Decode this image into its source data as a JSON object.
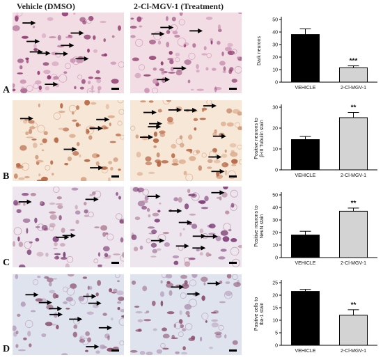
{
  "columns": {
    "vehicle": "Vehicle (DMSO)",
    "treatment": "2-Cl-MGV-1 (Treatment)"
  },
  "rows": [
    "A",
    "B",
    "C",
    "D"
  ],
  "palette": {
    "A": {
      "bg": "#f2dde4",
      "cell": "#8e3a6e",
      "cellLight": "#c98fb0"
    },
    "B": {
      "bg": "#f6e7d6",
      "cell": "#b5633f",
      "cellLight": "#d9a486"
    },
    "C": {
      "bg": "#eee6ee",
      "cell": "#7e3f77",
      "cellLight": "#b78a9e"
    },
    "D": {
      "bg": "#dfe3ee",
      "cell": "#8a4a6a",
      "cellLight": "#b39ab8"
    }
  },
  "chart_data": [
    {
      "type": "bar",
      "categories": [
        "VEHICLE",
        "2-Cl-MGV-1"
      ],
      "values": [
        38,
        11.5
      ],
      "errors": [
        4.5,
        1.5
      ],
      "ylabel": "Dark neurons",
      "ylim": [
        0,
        50
      ],
      "yticks": [
        0,
        10,
        20,
        30,
        40,
        50
      ],
      "significance": "***",
      "colors": [
        "#000000",
        "#d3d3d3"
      ]
    },
    {
      "type": "bar",
      "categories": [
        "VEHICLE",
        "2-Cl-MGV-1"
      ],
      "values": [
        14.5,
        25
      ],
      "errors": [
        1.5,
        2.5
      ],
      "ylabel": "Positive neurons to β-III Tubulin stain",
      "ylim": [
        0,
        30
      ],
      "yticks": [
        0,
        10,
        20,
        30
      ],
      "significance": "**",
      "colors": [
        "#000000",
        "#d3d3d3"
      ]
    },
    {
      "type": "bar",
      "categories": [
        "VEHICLE",
        "2-Cl-MGV-1"
      ],
      "values": [
        18,
        37
      ],
      "errors": [
        3,
        2.5
      ],
      "ylabel": "Positive neurons to NeuN stain",
      "ylim": [
        0,
        50
      ],
      "yticks": [
        0,
        10,
        20,
        30,
        40,
        50
      ],
      "significance": "**",
      "colors": [
        "#000000",
        "#d3d3d3"
      ]
    },
    {
      "type": "bar",
      "categories": [
        "VEHICLE",
        "2-Cl-MGV-1"
      ],
      "values": [
        21.5,
        12
      ],
      "errors": [
        0.8,
        2.2
      ],
      "ylabel": "Positive cells to Iba-1 stain",
      "ylim": [
        0,
        25
      ],
      "yticks": [
        0,
        5,
        10,
        15,
        20,
        25
      ],
      "significance": "**",
      "colors": [
        "#000000",
        "#d3d3d3"
      ]
    }
  ]
}
